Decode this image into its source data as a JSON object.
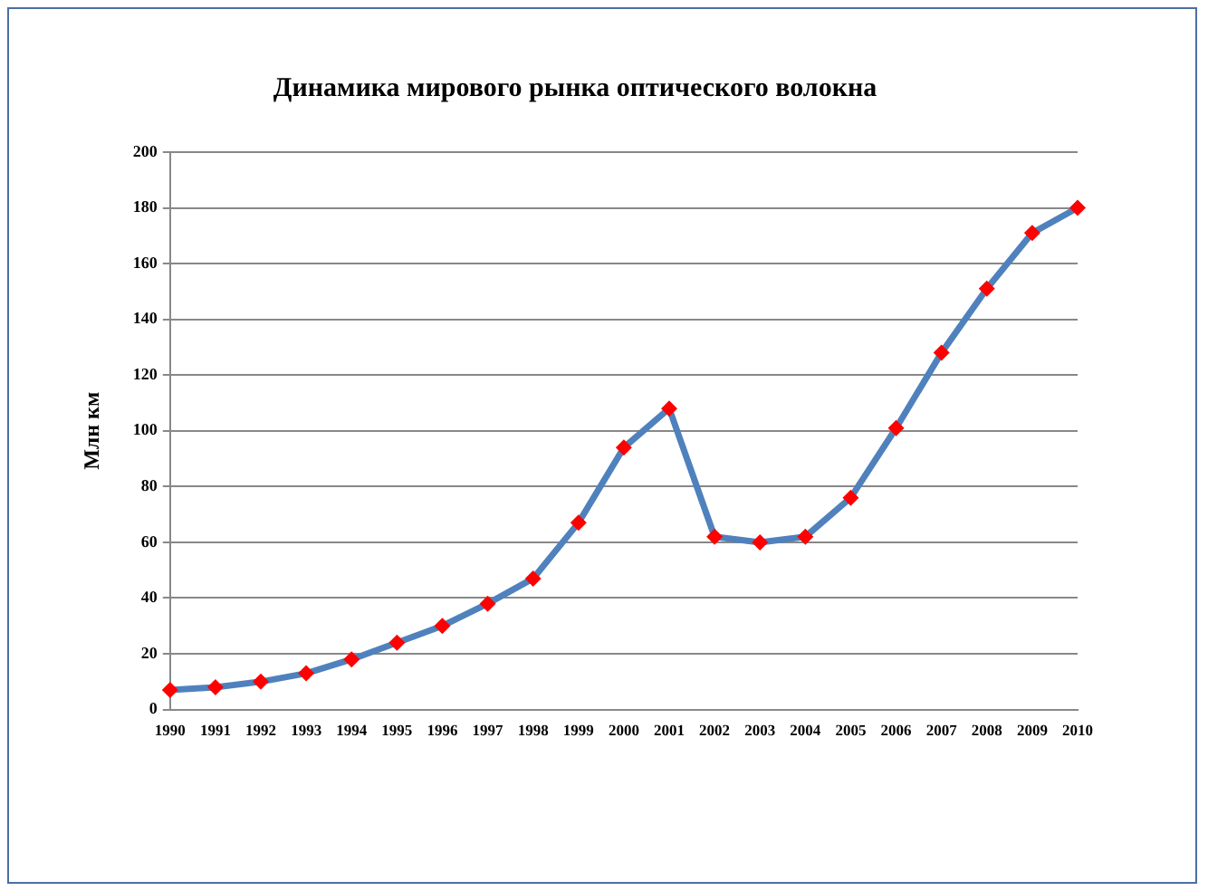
{
  "chart_data": {
    "type": "line",
    "title": "Динамика мирового рынка оптического волокна",
    "ylabel": "Млн км",
    "categories": [
      "1990",
      "1991",
      "1992",
      "1993",
      "1994",
      "1995",
      "1996",
      "1997",
      "1998",
      "1999",
      "2000",
      "2001",
      "2002",
      "2003",
      "2004",
      "2005",
      "2006",
      "2007",
      "2008",
      "2009",
      "2010"
    ],
    "series": [
      {
        "color": "#4f81bd",
        "values": [
          7,
          8,
          10,
          13,
          18,
          24,
          30,
          38,
          47,
          67,
          94,
          108,
          62,
          60,
          62,
          76,
          101,
          128,
          151,
          171,
          180
        ]
      }
    ],
    "ylim": [
      0,
      200
    ],
    "yticks": [
      0,
      20,
      40,
      60,
      80,
      100,
      120,
      140,
      160,
      180,
      200
    ],
    "grid": "y",
    "marker": "diamond",
    "legend": false
  }
}
